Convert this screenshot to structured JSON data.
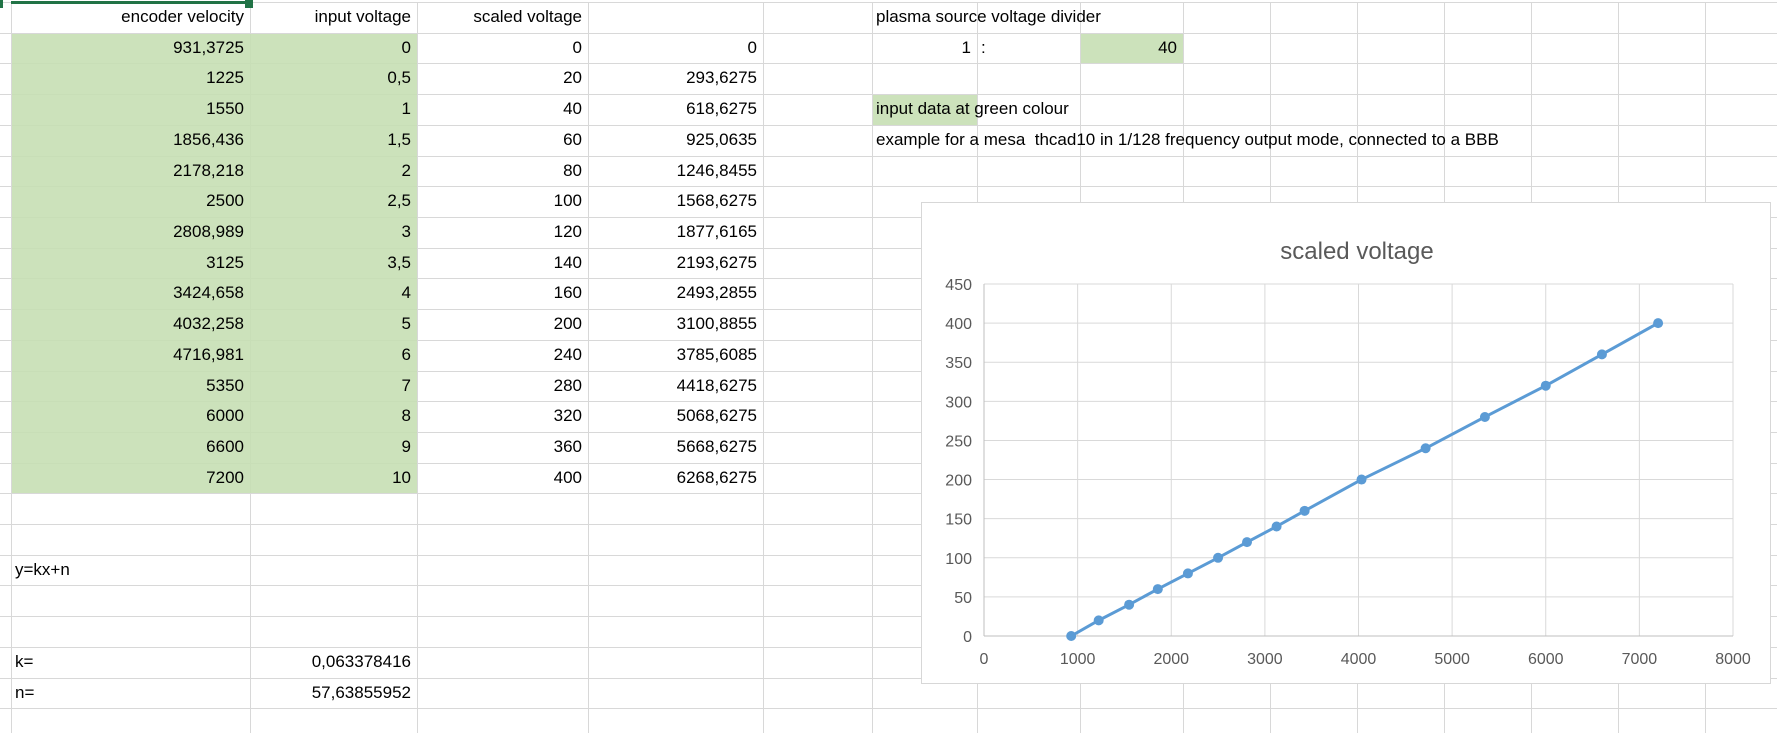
{
  "colors": {
    "input_fill": "#c6e0b4",
    "selection_border": "#217346",
    "grid_line": "#d8d8d8",
    "chart_line": "#5b9bd5",
    "chart_text": "#595959",
    "chart_grid": "#d9d9d9",
    "chart_axis": "#bfbfbf"
  },
  "sheet": {
    "headers": {
      "encoder_velocity": "encoder velocity",
      "input_voltage": "input voltage",
      "scaled_voltage": "scaled voltage"
    },
    "table_rows": [
      [
        "931,3725",
        "0",
        "0",
        "0"
      ],
      [
        "1225",
        "0,5",
        "20",
        "293,6275"
      ],
      [
        "1550",
        "1",
        "40",
        "618,6275"
      ],
      [
        "1856,436",
        "1,5",
        "60",
        "925,0635"
      ],
      [
        "2178,218",
        "2",
        "80",
        "1246,8455"
      ],
      [
        "2500",
        "2,5",
        "100",
        "1568,6275"
      ],
      [
        "2808,989",
        "3",
        "120",
        "1877,6165"
      ],
      [
        "3125",
        "3,5",
        "140",
        "2193,6275"
      ],
      [
        "3424,658",
        "4",
        "160",
        "2493,2855"
      ],
      [
        "4032,258",
        "5",
        "200",
        "3100,8855"
      ],
      [
        "4716,981",
        "6",
        "240",
        "3785,6085"
      ],
      [
        "5350",
        "7",
        "280",
        "4418,6275"
      ],
      [
        "6000",
        "8",
        "320",
        "5068,6275"
      ],
      [
        "6600",
        "9",
        "360",
        "5668,6275"
      ],
      [
        "7200",
        "10",
        "400",
        "6268,6275"
      ]
    ],
    "divider": {
      "title": "plasma source voltage divider",
      "ratio_left": "1",
      "ratio_colon": ":",
      "ratio_value": "40"
    },
    "notes": {
      "input_data_highlight": "input data",
      "input_data": "input data at green colour",
      "example": "example for a mesa  thcad10 in 1/128 frequency output mode, connected to a BBB"
    },
    "formula": {
      "equation": "y=kx+n",
      "k_label": "k=",
      "k_value": "0,063378416",
      "n_label": "n=",
      "n_value": "57,63855952"
    }
  },
  "chart_data": {
    "type": "line",
    "title": "scaled voltage",
    "x": [
      931.3725,
      1225,
      1550,
      1856.436,
      2178.218,
      2500,
      2808.989,
      3125,
      3424.658,
      4032.258,
      4716.981,
      5350,
      6000,
      6600,
      7200
    ],
    "series": [
      {
        "name": "scaled voltage",
        "values": [
          0,
          20,
          40,
          60,
          80,
          100,
          120,
          140,
          160,
          200,
          240,
          280,
          320,
          360,
          400
        ]
      }
    ],
    "xlabel": "",
    "ylabel": "",
    "xlim": [
      0,
      8000
    ],
    "ylim": [
      0,
      450
    ],
    "x_ticks": [
      0,
      1000,
      2000,
      3000,
      4000,
      5000,
      6000,
      7000,
      8000
    ],
    "y_ticks": [
      0,
      50,
      100,
      150,
      200,
      250,
      300,
      350,
      400,
      450
    ],
    "grid": true,
    "legend": false,
    "marker": "circle"
  }
}
